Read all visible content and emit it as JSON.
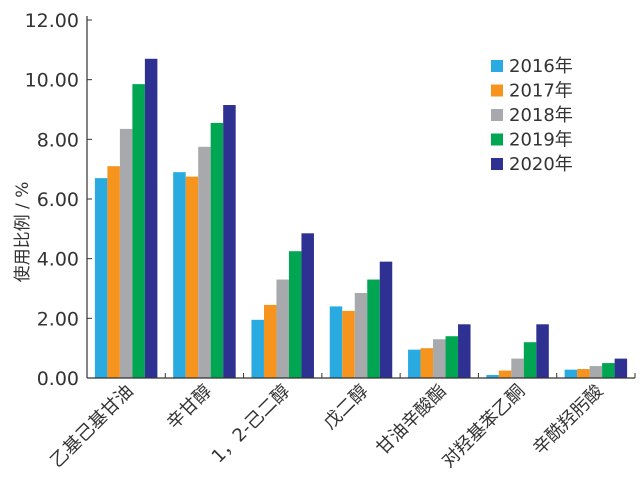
{
  "chart_data": {
    "type": "bar",
    "title": "",
    "xlabel": "",
    "ylabel": "使用比例 / %",
    "ylim": [
      0,
      12
    ],
    "yticks": [
      "0.00",
      "2.00",
      "4.00",
      "6.00",
      "8.00",
      "10.00",
      "12.00"
    ],
    "grid": false,
    "legend_position": "top-right",
    "categories": [
      "乙基己基甘油",
      "辛甘醇",
      "1，2-己二醇",
      "戊二醇",
      "甘油辛酸酯",
      "对羟基苯乙酮",
      "辛酰羟肟酸"
    ],
    "series": [
      {
        "name": "2016年",
        "color": "#29abe2",
        "values": [
          6.7,
          6.9,
          1.95,
          2.4,
          0.95,
          0.1,
          0.28
        ]
      },
      {
        "name": "2017年",
        "color": "#f7941d",
        "values": [
          7.1,
          6.75,
          2.45,
          2.25,
          1.0,
          0.25,
          0.3
        ]
      },
      {
        "name": "2018年",
        "color": "#a7a9ac",
        "values": [
          8.35,
          7.75,
          3.3,
          2.85,
          1.3,
          0.65,
          0.4
        ]
      },
      {
        "name": "2019年",
        "color": "#00a651",
        "values": [
          9.85,
          8.55,
          4.25,
          3.3,
          1.4,
          1.2,
          0.5
        ]
      },
      {
        "name": "2020年",
        "color": "#2e3192",
        "values": [
          10.7,
          9.15,
          4.85,
          3.9,
          1.8,
          1.8,
          0.65
        ]
      }
    ]
  }
}
